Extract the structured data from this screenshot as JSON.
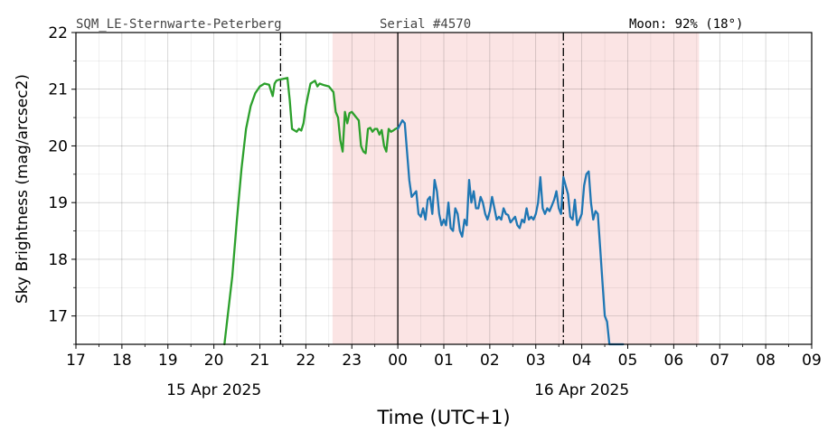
{
  "header": {
    "station": "SQM_LE-Sternwarte-Peterberg",
    "serial": "Serial #4570",
    "moon": "Moon: 92% (18°)"
  },
  "chart_data": {
    "type": "line",
    "xlabel": "Time (UTC+1)",
    "ylabel": "Sky Brightness (mag/arcsec2)",
    "xlim": [
      17,
      33
    ],
    "ylim": [
      16.5,
      22
    ],
    "x_unit": "hours since 00:00 on 15 Apr 2025",
    "x_tick_labels": [
      "17",
      "18",
      "19",
      "20",
      "21",
      "22",
      "23",
      "00",
      "01",
      "02",
      "03",
      "04",
      "05",
      "06",
      "07",
      "08",
      "09"
    ],
    "y_ticks": [
      17,
      18,
      19,
      20,
      21,
      22
    ],
    "date_labels": [
      {
        "text": "15 Apr 2025",
        "at_hour": 20
      },
      {
        "text": "16 Apr 2025",
        "at_hour": 28
      }
    ],
    "grid": true,
    "shaded_region": {
      "x": [
        22.58,
        30.55
      ],
      "color": "#fbe4e4"
    },
    "solid_vline": 24,
    "dashdot_vlines": [
      21.45,
      27.6
    ],
    "series": [
      {
        "color": "#2ca02c",
        "x": [
          20.23,
          20.3,
          20.4,
          20.5,
          20.6,
          20.7,
          20.8,
          20.9,
          21.0,
          21.1,
          21.2,
          21.28,
          21.32,
          21.36,
          21.42,
          21.5,
          21.6,
          21.65,
          21.7,
          21.8,
          21.85,
          21.9,
          21.95,
          22.0,
          22.05,
          22.1,
          22.2,
          22.25,
          22.3,
          22.4,
          22.5,
          22.6,
          22.65,
          22.7,
          22.75,
          22.8,
          22.85,
          22.9,
          22.95,
          23.0,
          23.05,
          23.1,
          23.15,
          23.2,
          23.25,
          23.3,
          23.35,
          23.4,
          23.45,
          23.5,
          23.55,
          23.6,
          23.65,
          23.7,
          23.75,
          23.8,
          23.85,
          23.9,
          23.95,
          24.0
        ],
        "y": [
          16.5,
          17.0,
          17.7,
          18.7,
          19.6,
          20.3,
          20.7,
          20.93,
          21.05,
          21.1,
          21.08,
          20.88,
          21.1,
          21.15,
          21.17,
          21.18,
          21.2,
          20.8,
          20.3,
          20.25,
          20.3,
          20.27,
          20.4,
          20.7,
          20.9,
          21.1,
          21.15,
          21.05,
          21.1,
          21.07,
          21.05,
          20.95,
          20.6,
          20.5,
          20.1,
          19.9,
          20.6,
          20.4,
          20.58,
          20.6,
          20.55,
          20.5,
          20.45,
          20.0,
          19.9,
          19.87,
          20.3,
          20.32,
          20.25,
          20.3,
          20.3,
          20.2,
          20.28,
          20.0,
          19.9,
          20.3,
          20.25,
          20.27,
          20.3,
          20.32
        ]
      },
      {
        "color": "#1f77b4",
        "x": [
          24.0,
          24.1,
          24.15,
          24.2,
          24.25,
          24.3,
          24.4,
          24.45,
          24.5,
          24.55,
          24.6,
          24.65,
          24.7,
          24.75,
          24.8,
          24.85,
          24.9,
          24.95,
          25.0,
          25.05,
          25.1,
          25.15,
          25.2,
          25.25,
          25.3,
          25.35,
          25.4,
          25.45,
          25.5,
          25.55,
          25.6,
          25.65,
          25.7,
          25.75,
          25.8,
          25.85,
          25.9,
          25.95,
          26.0,
          26.05,
          26.1,
          26.15,
          26.2,
          26.25,
          26.3,
          26.35,
          26.4,
          26.45,
          26.5,
          26.55,
          26.6,
          26.65,
          26.7,
          26.75,
          26.8,
          26.85,
          26.9,
          26.95,
          27.0,
          27.05,
          27.1,
          27.15,
          27.2,
          27.25,
          27.3,
          27.35,
          27.4,
          27.45,
          27.5,
          27.55,
          27.6,
          27.65,
          27.7,
          27.75,
          27.8,
          27.85,
          27.9,
          27.95,
          28.0,
          28.05,
          28.1,
          28.15,
          28.2,
          28.25,
          28.3,
          28.35,
          28.4,
          28.45,
          28.5,
          28.55,
          28.6,
          28.65,
          28.7,
          28.75,
          28.8,
          28.9
        ],
        "y": [
          20.3,
          20.45,
          20.4,
          19.9,
          19.4,
          19.1,
          19.2,
          18.8,
          18.75,
          18.9,
          18.7,
          19.05,
          19.1,
          18.8,
          19.4,
          19.2,
          18.8,
          18.6,
          18.7,
          18.6,
          19.0,
          18.55,
          18.5,
          18.9,
          18.8,
          18.5,
          18.4,
          18.7,
          18.6,
          19.4,
          19.0,
          19.2,
          18.9,
          18.9,
          19.1,
          19.0,
          18.8,
          18.7,
          18.85,
          19.1,
          18.9,
          18.7,
          18.75,
          18.7,
          18.9,
          18.8,
          18.78,
          18.65,
          18.7,
          18.75,
          18.6,
          18.55,
          18.7,
          18.65,
          18.9,
          18.7,
          18.75,
          18.7,
          18.8,
          19.0,
          19.45,
          18.9,
          18.8,
          18.9,
          18.85,
          18.95,
          19.05,
          19.2,
          18.9,
          18.8,
          19.45,
          19.3,
          19.15,
          18.75,
          18.7,
          19.05,
          18.6,
          18.7,
          18.8,
          19.3,
          19.5,
          19.55,
          19.0,
          18.7,
          18.85,
          18.8,
          18.2,
          17.6,
          17.0,
          16.9,
          16.5,
          16.5,
          16.5,
          16.5,
          16.5,
          16.5
        ]
      }
    ]
  }
}
